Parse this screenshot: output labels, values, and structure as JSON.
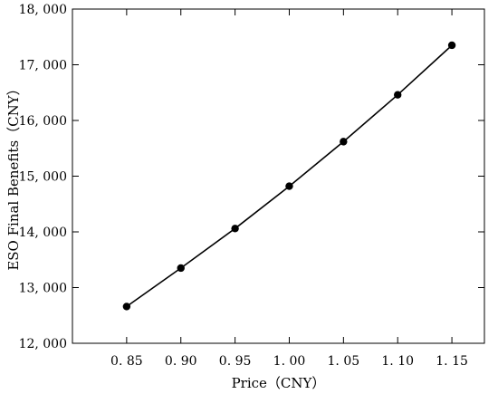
{
  "chart_data": {
    "type": "line",
    "title": "",
    "xlabel": "Price（CNY）",
    "ylabel": "ESO Final Benefits（CNY）",
    "x": [
      0.85,
      0.9,
      0.95,
      1.0,
      1.05,
      1.1,
      1.15
    ],
    "series": [
      {
        "values": [
          12660,
          13350,
          14060,
          14820,
          15620,
          16460,
          17350
        ]
      }
    ],
    "xlim": [
      0.8,
      1.18
    ],
    "ylim": [
      12000,
      18000
    ],
    "x_ticks": [
      0.85,
      0.9,
      0.95,
      1.0,
      1.05,
      1.1,
      1.15
    ],
    "x_tick_labels": [
      "0. 85",
      "0. 90",
      "0. 95",
      "1. 00",
      "1. 05",
      "1. 10",
      "1. 15"
    ],
    "y_ticks": [
      12000,
      13000,
      14000,
      15000,
      16000,
      17000,
      18000
    ],
    "y_tick_labels": [
      "12, 000",
      "13, 000",
      "14, 000",
      "15, 000",
      "16, 000",
      "17, 000",
      "18, 000"
    ],
    "grid": false,
    "legend": "none",
    "line_color": "#000000",
    "marker": "filled-circle"
  }
}
